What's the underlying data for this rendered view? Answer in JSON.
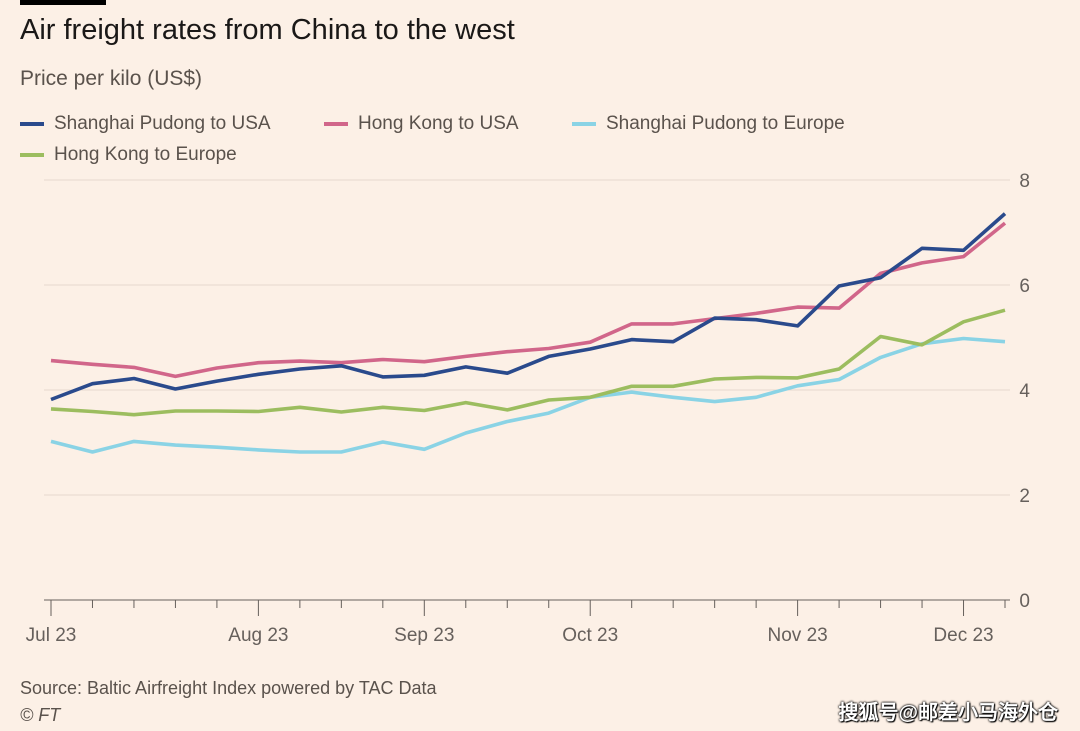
{
  "header": {
    "title": "Air freight rates from China to the west",
    "subtitle": "Price per kilo (US$)"
  },
  "footer": {
    "source": "Source: Baltic Airfreight Index powered by TAC Data",
    "copyright": "© FT"
  },
  "watermark": "搜狐号@邮差小马海外仓",
  "chart_data": {
    "type": "line",
    "title": "Air freight rates from China to the west",
    "ylabel": "Price per kilo (US$)",
    "xlabel": "",
    "ylim": [
      0,
      8
    ],
    "yticks": [
      0,
      2,
      4,
      6,
      8
    ],
    "y_axis_side": "right",
    "grid": true,
    "legend_position": "top",
    "x": [
      0,
      1,
      2,
      3,
      4,
      5,
      6,
      7,
      8,
      9,
      10,
      11,
      12,
      13,
      14,
      15,
      16,
      17,
      18,
      19,
      20,
      21,
      22,
      23
    ],
    "x_tick_labels": [
      {
        "index": 0,
        "label": "Jul 23"
      },
      {
        "index": 5,
        "label": "Aug 23"
      },
      {
        "index": 9,
        "label": "Sep 23"
      },
      {
        "index": 13,
        "label": "Oct 23"
      },
      {
        "index": 18,
        "label": "Nov 23"
      },
      {
        "index": 22,
        "label": "Dec 23"
      }
    ],
    "series": [
      {
        "name": "Shanghai Pudong to USA",
        "color": "#2a4a8c",
        "values": [
          3.82,
          4.12,
          4.22,
          4.02,
          4.17,
          4.3,
          4.4,
          4.46,
          4.25,
          4.28,
          4.44,
          4.32,
          4.64,
          4.78,
          4.96,
          4.92,
          5.37,
          5.34,
          5.22,
          5.98,
          6.14,
          6.7,
          6.66,
          7.36
        ]
      },
      {
        "name": "Hong Kong to USA",
        "color": "#d1668a",
        "values": [
          4.56,
          4.49,
          4.43,
          4.26,
          4.42,
          4.52,
          4.55,
          4.52,
          4.58,
          4.54,
          4.64,
          4.73,
          4.79,
          4.91,
          5.26,
          5.26,
          5.36,
          5.46,
          5.58,
          5.56,
          6.22,
          6.42,
          6.54,
          7.18
        ]
      },
      {
        "name": "Shanghai Pudong to Europe",
        "color": "#8ad3e5",
        "values": [
          3.02,
          2.82,
          3.02,
          2.95,
          2.91,
          2.86,
          2.82,
          2.82,
          3.01,
          2.87,
          3.18,
          3.4,
          3.56,
          3.86,
          3.96,
          3.86,
          3.78,
          3.86,
          4.08,
          4.2,
          4.62,
          4.88,
          4.98,
          4.92
        ]
      },
      {
        "name": "Hong Kong to Europe",
        "color": "#9cbd5f",
        "values": [
          3.64,
          3.59,
          3.53,
          3.6,
          3.6,
          3.59,
          3.67,
          3.58,
          3.67,
          3.61,
          3.76,
          3.62,
          3.81,
          3.86,
          4.07,
          4.07,
          4.21,
          4.24,
          4.23,
          4.4,
          5.02,
          4.86,
          5.3,
          5.52
        ]
      }
    ]
  }
}
